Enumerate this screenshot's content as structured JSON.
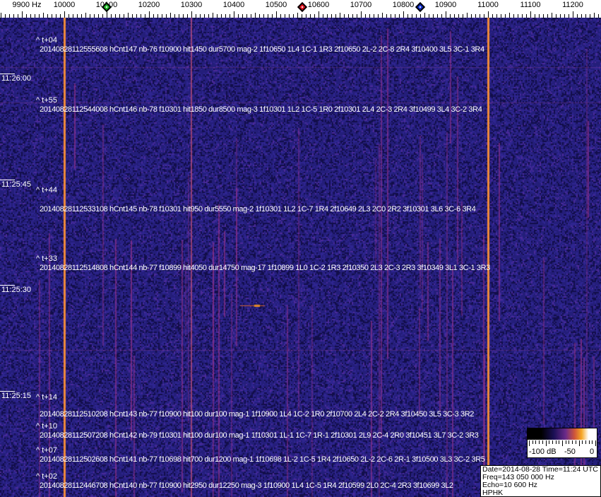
{
  "axis": {
    "unit_label": "9900 Hz",
    "labels": [
      "10000",
      "10100",
      "10200",
      "10300",
      "10400",
      "10500",
      "10600",
      "10700",
      "10800",
      "10900",
      "11000",
      "11100",
      "11200"
    ],
    "markers": [
      {
        "name": "green",
        "freq_hz": 10100,
        "color": "#22c02a"
      },
      {
        "name": "red",
        "freq_hz": 10561,
        "color": "#e0141e"
      },
      {
        "name": "blue",
        "freq_hz": 10840,
        "color": "#1030d0"
      }
    ]
  },
  "waterfall": {
    "carrier_lines_hz": [
      10000,
      11000,
      10300
    ],
    "colors": {
      "background": "#1e1a6e",
      "line": "#f08a3a"
    }
  },
  "time_labels": [
    "11:26:00",
    "11:25:45",
    "11:25:30",
    "11:25:15"
  ],
  "offsets": [
    "^ t+04",
    "^ t+55",
    "^ t+44",
    "^ t+33",
    "^ t+14",
    "^ t+10",
    "^ t+07",
    "^ t+02"
  ],
  "events": [
    "20140828112555608 hCnt147 nb-76 f10900 hit1450 dur5700 mag-2 1f10650 1L4 1C-1 1R3 2f10650 2L-2 2C-8 2R4 3f10400 3L5 3C-1 3R4",
    "20140828112544008 hCnt146 nb-78 f10301 hit1850 dur8500 mag-3 1f10301 1L2 1C-5 1R0 2f10301 2L4 2C-3 2R4 3f10499 3L4 3C-2 3R4",
    "20140828112533108 hCnt145 nb-78 f10301 hit950 dur5550 mag-2 1f10301 1L2 1C-7 1R4 2f10649 2L3 2C0 2R2 3f10301 3L6 3C-6 3R4",
    "20140828112514808 hCnt144 nb-77 f10899 hit4050 dur14750 mag-17 1f10899 1L0 1C-2 1R3 2f10350 2L3 2C-3 2R3 3f10349 3L1 3C-1 3R3",
    "20140828112510208 hCnt143 nb-77 f10900 hit100 dur100 mag-1 1f10900 1L4 1C-2 1R0 2f10700 2L4 2C-2 2R4 3f10450 3L5 3C-3 3R2",
    "20140828112507208 hCnt142 nb-79 f10301 hit100 dur100 mag-1 1f10301 1L-1 1C-7 1R-1 2f10301 2L9 2C-4 2R0 3f10451 3L7 3C-2 3R3",
    "20140828112502608 hCnt141 nb-77 f10698 hit700 dur1200 mag-1 1f10698 1L-2 1C-5 1R4 2f10650 2L-2 2C-6 2R-1 3f10500 3L3 3C-2 3R5",
    "20140828112446708 hCnt140 nb-77 f10900 hit2950 dur12250 mag-3 1f10900 1L4 1C-5 1R4 2f10599 2L0 2C-4 2R3 3f10699 3L2"
  ],
  "color_scale": {
    "labels": [
      "-100 dB",
      "-50",
      "0"
    ]
  },
  "info": {
    "date_time": "Date=2014-08-28 Time=11:24 UTC",
    "freq": "Freq=143 050 000 Hz",
    "echo": "Echo=10 600 Hz",
    "station": "HPHK"
  }
}
